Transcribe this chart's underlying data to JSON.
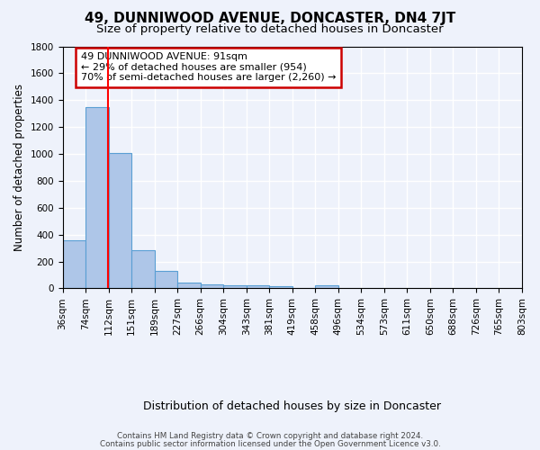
{
  "title": "49, DUNNIWOOD AVENUE, DONCASTER, DN4 7JT",
  "subtitle": "Size of property relative to detached houses in Doncaster",
  "xlabel": "Distribution of detached houses by size in Doncaster",
  "ylabel": "Number of detached properties",
  "footnote1": "Contains HM Land Registry data © Crown copyright and database right 2024.",
  "footnote2": "Contains public sector information licensed under the Open Government Licence v3.0.",
  "bin_labels": [
    "36sqm",
    "74sqm",
    "112sqm",
    "151sqm",
    "189sqm",
    "227sqm",
    "266sqm",
    "304sqm",
    "343sqm",
    "381sqm",
    "419sqm",
    "458sqm",
    "496sqm",
    "534sqm",
    "573sqm",
    "611sqm",
    "650sqm",
    "688sqm",
    "726sqm",
    "765sqm",
    "803sqm"
  ],
  "bar_values": [
    355,
    1350,
    1010,
    285,
    130,
    40,
    30,
    25,
    20,
    15,
    0,
    20,
    0,
    0,
    0,
    0,
    0,
    0,
    0,
    0
  ],
  "bar_color": "#aec6e8",
  "bar_edge_color": "#5a9fd4",
  "red_line_x": 1.47,
  "ylim": [
    0,
    1800
  ],
  "yticks": [
    0,
    200,
    400,
    600,
    800,
    1000,
    1200,
    1400,
    1600,
    1800
  ],
  "annotation_text": "49 DUNNIWOOD AVENUE: 91sqm\n← 29% of detached houses are smaller (954)\n70% of semi-detached houses are larger (2,260) →",
  "annotation_box_color": "#ffffff",
  "annotation_box_edge": "#cc0000",
  "bg_color": "#eef2fb",
  "grid_color": "#ffffff",
  "title_fontsize": 11,
  "subtitle_fontsize": 9.5,
  "ylabel_fontsize": 8.5,
  "xlabel_fontsize": 9,
  "tick_fontsize": 7.5,
  "annot_fontsize": 8.0
}
